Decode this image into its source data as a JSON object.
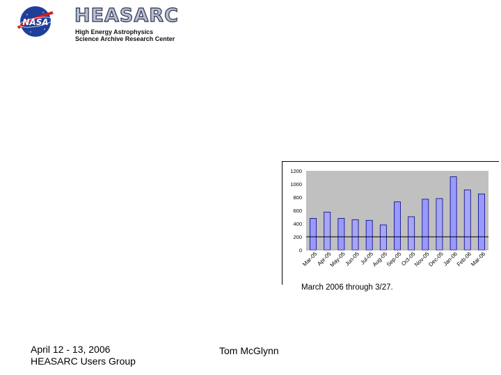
{
  "header": {
    "nasa_logo_text": "NASA",
    "brand": "HEASARC",
    "subtitle_line1": "High Energy Astrophysics",
    "subtitle_line2": "Science Archive Research Center"
  },
  "chart_data": {
    "type": "bar",
    "categories": [
      "Mar-05",
      "Apr-05",
      "May-05",
      "Jun-05",
      "Jul-05",
      "Aug-05",
      "Sep-05",
      "Oct-05",
      "Nov-05",
      "Dec-05",
      "Jan-06",
      "Feb-06",
      "Mar-06"
    ],
    "values": [
      480,
      575,
      480,
      460,
      450,
      380,
      730,
      505,
      770,
      780,
      1110,
      910,
      850
    ],
    "ylim": [
      0,
      1200
    ],
    "yticks": [
      "0",
      "200",
      "400",
      "600",
      "800",
      "1000",
      "1200"
    ],
    "reference_line": 200,
    "grid": false,
    "colors": {
      "plot_bg": "#c0c0c0",
      "bar_dark": "#9999ff",
      "bar_light": "#a6a6f2",
      "bar_edge": "#000080"
    }
  },
  "caption": "March 2006 through 3/27.",
  "footer": {
    "date": "April 12 - 13, 2006",
    "event": "HEASARC Users Group",
    "author": "Tom McGlynn"
  }
}
